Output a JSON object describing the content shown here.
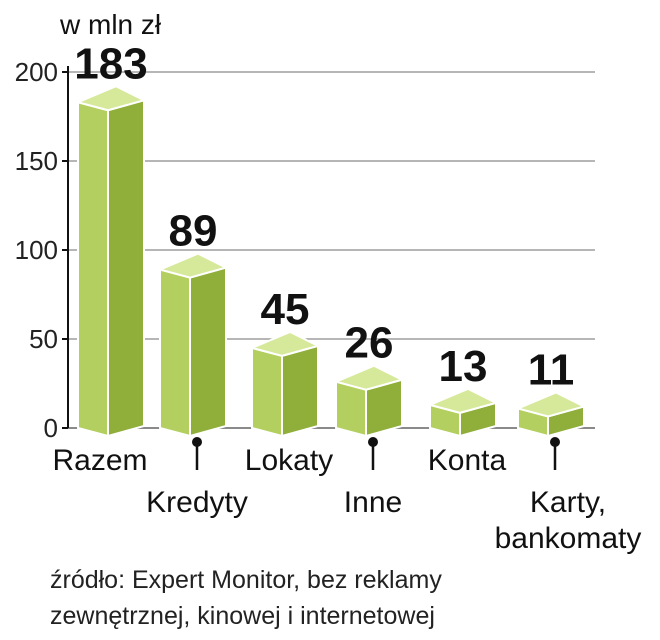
{
  "chart_data": {
    "type": "bar",
    "unit_label": "w mln zł",
    "categories": [
      "Razem",
      "Kredyty",
      "Lokaty",
      "Inne",
      "Konta",
      "Karty, bankomaty"
    ],
    "category_lines": [
      [
        "Razem"
      ],
      [
        "Kredyty"
      ],
      [
        "Lokaty"
      ],
      [
        "Inne"
      ],
      [
        "Konta"
      ],
      [
        "Karty,",
        "bankomaty"
      ]
    ],
    "values": [
      183,
      89,
      45,
      26,
      13,
      11
    ],
    "value_labels": [
      "183",
      "89",
      "45",
      "26",
      "13",
      "11"
    ],
    "ylim": [
      0,
      200
    ],
    "yticks": [
      "0",
      "50",
      "100",
      "150",
      "200"
    ],
    "grid": true,
    "colors": {
      "bar_front": "#b3cf5f",
      "bar_side": "#8fae3a",
      "bar_top": "#d6e99a",
      "outline": "#ffffff",
      "grid": "#8a8a8a",
      "text": "#111111"
    }
  },
  "source": {
    "line1": "źródło: Expert Monitor, bez reklamy",
    "line2": "zewnętrznej, kinowej i internetowej"
  }
}
